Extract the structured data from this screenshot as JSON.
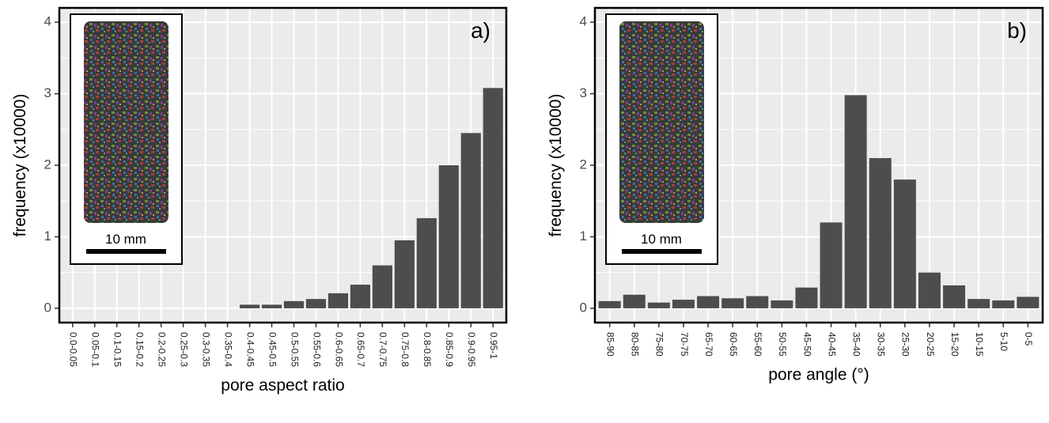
{
  "chart_data": [
    {
      "type": "bar",
      "panel_label": "a)",
      "inset_scale_label": "10 mm",
      "x_label": "pore aspect ratio",
      "y_label": "frequency (x10000)",
      "categories": [
        "0.0-0.05",
        "0.05-0.1",
        "0.1-0.15",
        "0.15-0.2",
        "0.2-0.25",
        "0.25-0.3",
        "0.3-0.35",
        "0.35-0.4",
        "0.4-0.45",
        "0.45-0.5",
        "0.5-0.55",
        "0.55-0.6",
        "0.6-0.65",
        "0.65-0.7",
        "0.7-0.75",
        "0.75-0.8",
        "0.8-0.85",
        "0.85-0.9",
        "0.9-0.95",
        "0.95-1"
      ],
      "values": [
        0,
        0,
        0,
        0,
        0,
        0,
        0,
        0,
        0.05,
        0.05,
        0.1,
        0.13,
        0.21,
        0.33,
        0.6,
        0.95,
        1.26,
        2.0,
        2.45,
        3.08
      ],
      "color": "#4d4d4d",
      "ylim": [
        -0.2,
        4.2
      ],
      "yticks": [
        0,
        1,
        2,
        3,
        4
      ],
      "grid": true
    },
    {
      "type": "bar",
      "panel_label": "b)",
      "inset_scale_label": "10 mm",
      "x_label": "pore angle (°)",
      "y_label": "frequency (x10000)",
      "categories": [
        "85-90",
        "80-85",
        "75-80",
        "70-75",
        "65-70",
        "60-65",
        "55-60",
        "50-55",
        "45-50",
        "40-45",
        "35-40",
        "30-35",
        "25-30",
        "20-25",
        "15-20",
        "10-15",
        "5-10",
        "0-5"
      ],
      "values": [
        0.1,
        0.19,
        0.08,
        0.12,
        0.17,
        0.14,
        0.17,
        0.11,
        0.29,
        1.2,
        2.98,
        2.1,
        1.8,
        0.5,
        0.32,
        0.13,
        0.11,
        0.16
      ],
      "color": "#4d4d4d",
      "ylim": [
        -0.2,
        4.2
      ],
      "yticks": [
        0,
        1,
        2,
        3,
        4
      ],
      "grid": true
    }
  ]
}
